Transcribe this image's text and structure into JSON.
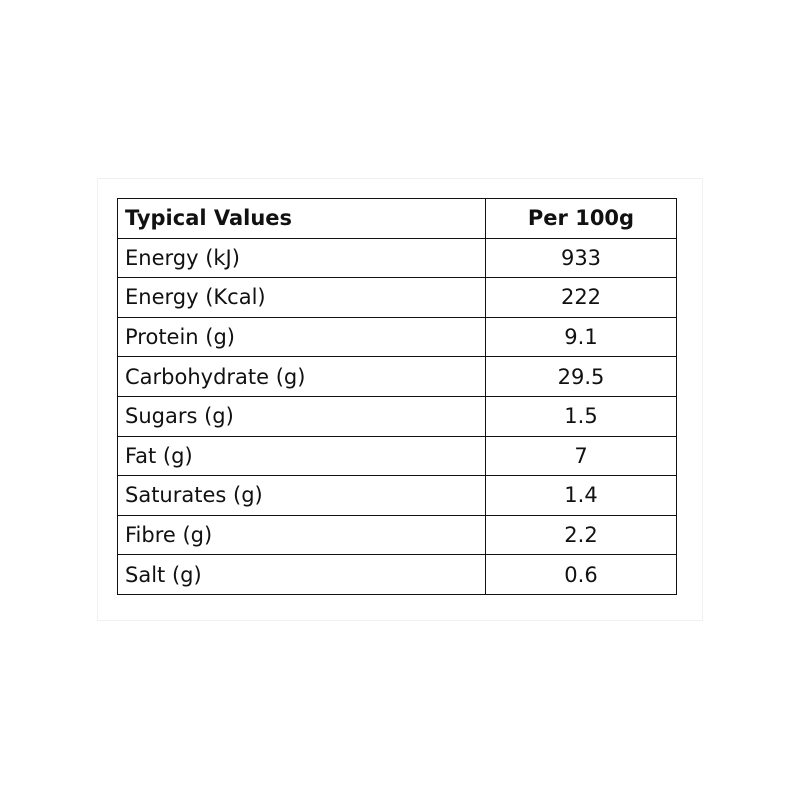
{
  "table": {
    "header": [
      "Typical Values",
      "Per 100g"
    ],
    "rows": [
      [
        "Energy (kJ)",
        "933"
      ],
      [
        "Energy (Kcal)",
        "222"
      ],
      [
        "Protein (g)",
        "9.1"
      ],
      [
        "Carbohydrate (g)",
        "29.5"
      ],
      [
        "Sugars (g)",
        "1.5"
      ],
      [
        "Fat (g)",
        "7"
      ],
      [
        "Saturates (g)",
        "1.4"
      ],
      [
        "Fibre (g)",
        "2.2"
      ],
      [
        "Salt (g)",
        "0.6"
      ]
    ]
  }
}
